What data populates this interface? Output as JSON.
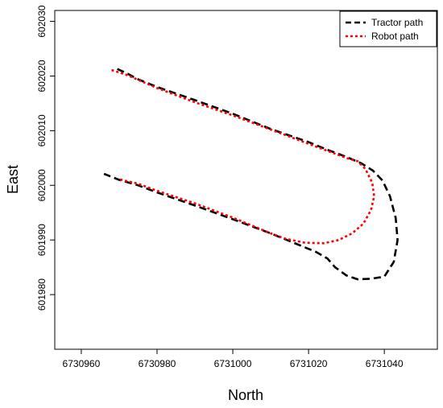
{
  "chart_data": {
    "type": "line",
    "title": "",
    "xlabel": "North",
    "ylabel": "East",
    "xlim": [
      6730953,
      6731054
    ],
    "ylim": [
      601970,
      602032
    ],
    "xticks": [
      6730960,
      6730980,
      6731000,
      6731020,
      6731040
    ],
    "yticks": [
      601980,
      601990,
      602000,
      602010,
      602020,
      602030
    ],
    "grid": false,
    "legend": {
      "position": "top-right"
    },
    "series": [
      {
        "name": "Tractor path",
        "color": "#000000",
        "style": "dashed",
        "points": [
          [
            6730969.5,
            602021.3
          ],
          [
            6730972,
            602020.5
          ],
          [
            6730975,
            602019.4
          ],
          [
            6730980,
            602018.0
          ],
          [
            6730990,
            602015.6
          ],
          [
            6731000,
            602013.1
          ],
          [
            6731010,
            602010.3
          ],
          [
            6731020,
            602007.9
          ],
          [
            6731025,
            602006.5
          ],
          [
            6731030,
            602005.2
          ],
          [
            6731034,
            602004.0
          ],
          [
            6731037,
            602002.7
          ],
          [
            6731039.5,
            602000.9
          ],
          [
            6731041.5,
            601998.0
          ],
          [
            6731043,
            601994.0
          ],
          [
            6731043.5,
            601990.0
          ],
          [
            6731042.5,
            601986.0
          ],
          [
            6731040,
            601983.3
          ],
          [
            6731036.5,
            601982.9
          ],
          [
            6731033,
            601982.8
          ],
          [
            6731030,
            601983.5
          ],
          [
            6731027,
            601985.0
          ],
          [
            6731025,
            601986.6
          ],
          [
            6731022,
            601987.8
          ],
          [
            6731015,
            601989.8
          ],
          [
            6731010,
            601991.2
          ],
          [
            6731000,
            601993.8
          ],
          [
            6730990,
            601996.3
          ],
          [
            6730980,
            601998.7
          ],
          [
            6730975,
            602000.0
          ],
          [
            6730970,
            602001.0
          ],
          [
            6730966,
            602002.1
          ]
        ]
      },
      {
        "name": "Robot path",
        "color": "#ff0000",
        "style": "dotted",
        "points": [
          [
            6730968,
            602021.1
          ],
          [
            6730972,
            602020.2
          ],
          [
            6730980,
            602017.8
          ],
          [
            6730990,
            602015.2
          ],
          [
            6731000,
            602012.8
          ],
          [
            6731010,
            602010.2
          ],
          [
            6731020,
            602007.6
          ],
          [
            6731025,
            602006.3
          ],
          [
            6731030,
            602005.0
          ],
          [
            6731033,
            602004.4
          ],
          [
            6731035,
            602003.0
          ],
          [
            6731036.8,
            602000.5
          ],
          [
            6731037.3,
            601998.0
          ],
          [
            6731036.5,
            601995.5
          ],
          [
            6731034.5,
            601993.0
          ],
          [
            6731031.5,
            601991.2
          ],
          [
            6731028,
            601990.0
          ],
          [
            6731024,
            601989.4
          ],
          [
            6731019,
            601989.5
          ],
          [
            6731014,
            601990.2
          ],
          [
            6731010,
            601991.2
          ],
          [
            6731000,
            601994.1
          ],
          [
            6730990,
            601996.7
          ],
          [
            6730980,
            601999.0
          ],
          [
            6730975,
            602000.3
          ],
          [
            6730970,
            602001.1
          ]
        ]
      }
    ]
  }
}
